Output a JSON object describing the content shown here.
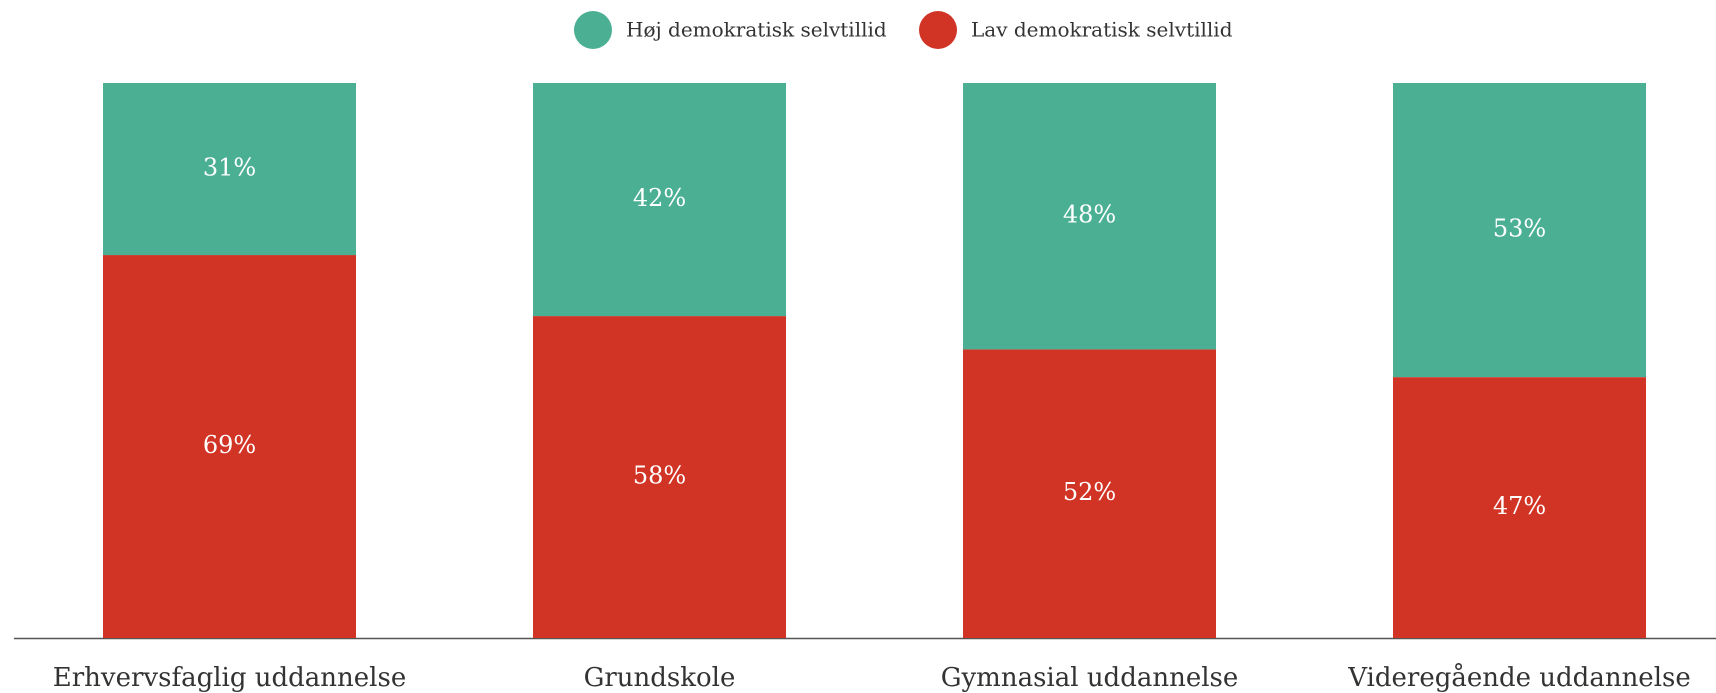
{
  "chart_data": {
    "type": "stacked_bar",
    "categories": [
      "Erhvervsfaglig uddannelse",
      "Grundskole",
      "Gymnasial uddannelse",
      "Videregående uddannelse"
    ],
    "series": [
      {
        "name": "Høj demokratisk selvtillid",
        "color": "#4aaf93",
        "values": [
          31,
          42,
          48,
          53
        ],
        "value_labels": [
          "31%",
          "42%",
          "48%",
          "53%"
        ]
      },
      {
        "name": "Lav demokratisk selvtillid",
        "color": "#d13324",
        "values": [
          69,
          58,
          52,
          47
        ],
        "value_labels": [
          "69%",
          "58%",
          "52%",
          "47%"
        ]
      }
    ],
    "stack_order": "bottom_last",
    "ylim": [
      0,
      100
    ],
    "legend": "top"
  }
}
